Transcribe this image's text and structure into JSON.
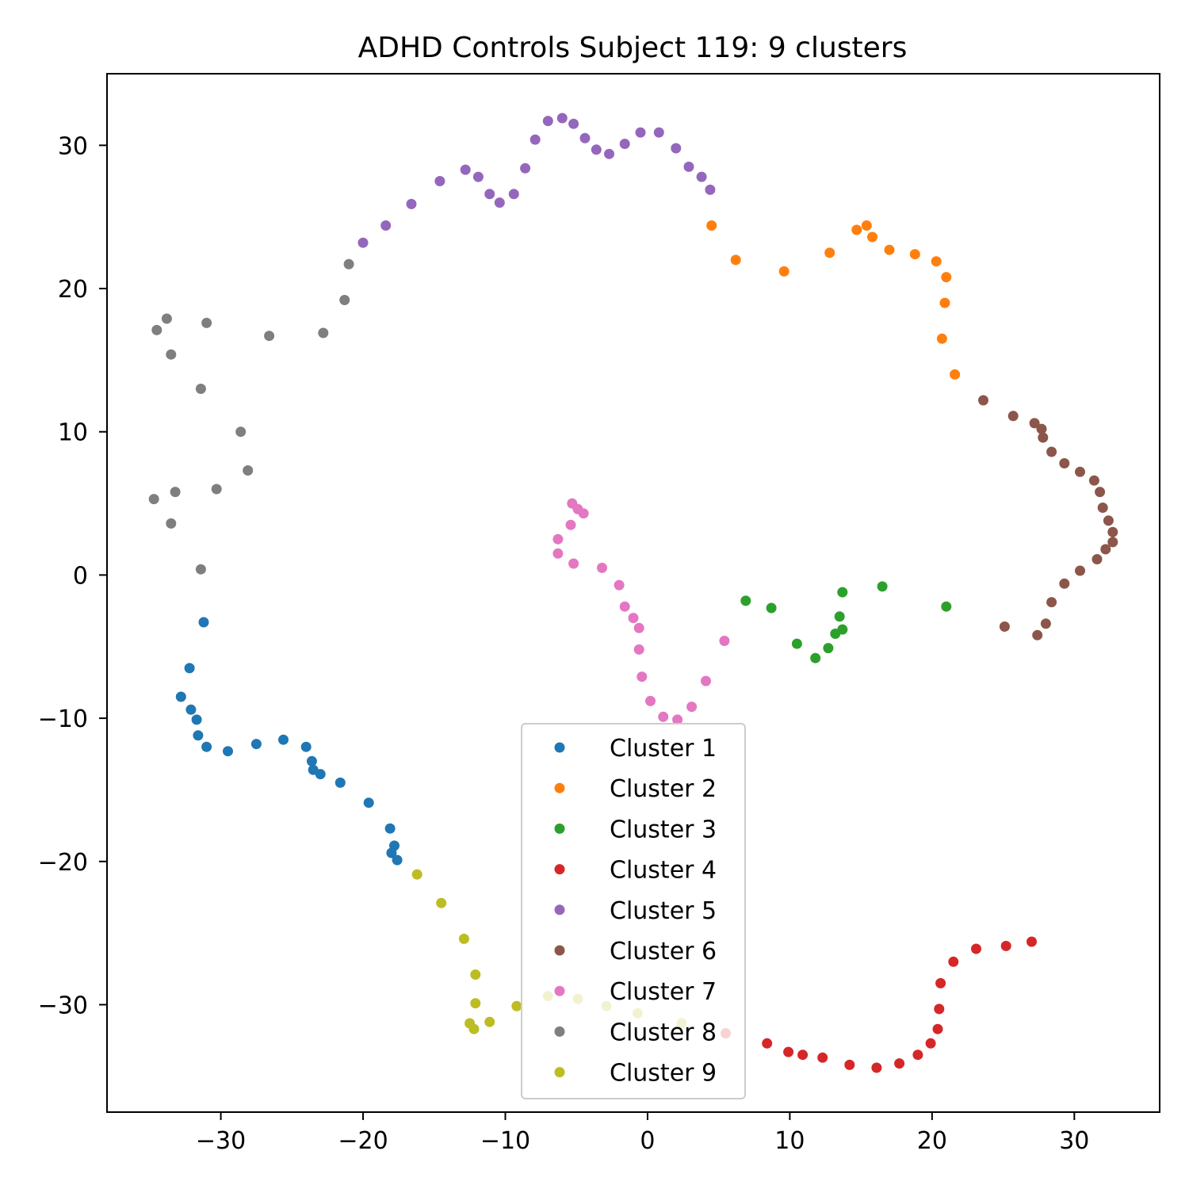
{
  "chart_data": {
    "type": "scatter",
    "title": "ADHD Controls Subject 119: 9 clusters",
    "xlabel": "",
    "ylabel": "",
    "xlim": [
      -38,
      36
    ],
    "ylim": [
      -37.5,
      35
    ],
    "xticks": [
      -30,
      -20,
      -10,
      0,
      10,
      20,
      30
    ],
    "yticks": [
      -30,
      -20,
      -10,
      0,
      10,
      20,
      30
    ],
    "xtick_labels": [
      "−30",
      "−20",
      "−10",
      "0",
      "10",
      "20",
      "30"
    ],
    "ytick_labels": [
      "−30",
      "−20",
      "−10",
      "0",
      "10",
      "20",
      "30"
    ],
    "grid": false,
    "legend_position": "lower center",
    "series": [
      {
        "name": "Cluster 1",
        "color": "#1f77b4",
        "points": [
          [
            -31.2,
            -3.3
          ],
          [
            -32.2,
            -6.5
          ],
          [
            -32.8,
            -8.5
          ],
          [
            -32.1,
            -9.4
          ],
          [
            -31.7,
            -10.1
          ],
          [
            -31.6,
            -11.2
          ],
          [
            -31.0,
            -12.0
          ],
          [
            -29.5,
            -12.3
          ],
          [
            -27.5,
            -11.8
          ],
          [
            -25.6,
            -11.5
          ],
          [
            -24.0,
            -12.0
          ],
          [
            -23.6,
            -13.0
          ],
          [
            -23.5,
            -13.6
          ],
          [
            -23.0,
            -13.9
          ],
          [
            -21.6,
            -14.5
          ],
          [
            -19.6,
            -15.9
          ],
          [
            -18.1,
            -17.7
          ],
          [
            -17.8,
            -18.9
          ],
          [
            -18.0,
            -19.4
          ],
          [
            -17.6,
            -19.9
          ]
        ]
      },
      {
        "name": "Cluster 2",
        "color": "#ff7f0e",
        "points": [
          [
            4.5,
            24.4
          ],
          [
            6.2,
            22.0
          ],
          [
            9.6,
            21.2
          ],
          [
            12.8,
            22.5
          ],
          [
            14.7,
            24.1
          ],
          [
            15.4,
            24.4
          ],
          [
            15.8,
            23.6
          ],
          [
            17.0,
            22.7
          ],
          [
            18.8,
            22.4
          ],
          [
            20.3,
            21.9
          ],
          [
            21.0,
            20.8
          ],
          [
            20.9,
            19.0
          ],
          [
            20.7,
            16.5
          ],
          [
            21.6,
            14.0
          ]
        ]
      },
      {
        "name": "Cluster 3",
        "color": "#2ca02c",
        "points": [
          [
            6.9,
            -1.8
          ],
          [
            8.7,
            -2.3
          ],
          [
            10.5,
            -4.8
          ],
          [
            11.8,
            -5.8
          ],
          [
            12.7,
            -5.1
          ],
          [
            13.2,
            -4.1
          ],
          [
            13.5,
            -2.9
          ],
          [
            13.7,
            -3.8
          ],
          [
            13.7,
            -1.2
          ],
          [
            16.5,
            -0.8
          ],
          [
            21.0,
            -2.2
          ]
        ]
      },
      {
        "name": "Cluster 4",
        "color": "#d62728",
        "points": [
          [
            5.5,
            -32.0
          ],
          [
            8.4,
            -32.7
          ],
          [
            9.9,
            -33.3
          ],
          [
            10.9,
            -33.5
          ],
          [
            12.3,
            -33.7
          ],
          [
            14.2,
            -34.2
          ],
          [
            16.1,
            -34.4
          ],
          [
            17.7,
            -34.1
          ],
          [
            19.0,
            -33.5
          ],
          [
            19.9,
            -32.7
          ],
          [
            20.4,
            -31.7
          ],
          [
            20.5,
            -30.3
          ],
          [
            20.6,
            -28.5
          ],
          [
            21.5,
            -27.0
          ],
          [
            23.1,
            -26.1
          ],
          [
            25.2,
            -25.9
          ],
          [
            27.0,
            -25.6
          ]
        ]
      },
      {
        "name": "Cluster 5",
        "color": "#9467bd",
        "points": [
          [
            -20.0,
            23.2
          ],
          [
            -18.4,
            24.4
          ],
          [
            -16.6,
            25.9
          ],
          [
            -14.6,
            27.5
          ],
          [
            -12.8,
            28.3
          ],
          [
            -11.9,
            27.8
          ],
          [
            -11.1,
            26.6
          ],
          [
            -10.4,
            26.0
          ],
          [
            -9.4,
            26.6
          ],
          [
            -8.6,
            28.4
          ],
          [
            -7.9,
            30.4
          ],
          [
            -7.0,
            31.7
          ],
          [
            -6.0,
            31.9
          ],
          [
            -5.2,
            31.5
          ],
          [
            -4.4,
            30.5
          ],
          [
            -3.6,
            29.7
          ],
          [
            -2.7,
            29.4
          ],
          [
            -1.6,
            30.1
          ],
          [
            -0.5,
            30.9
          ],
          [
            0.8,
            30.9
          ],
          [
            2.0,
            29.8
          ],
          [
            2.9,
            28.5
          ],
          [
            3.8,
            27.8
          ],
          [
            4.4,
            26.9
          ]
        ]
      },
      {
        "name": "Cluster 6",
        "color": "#8c564b",
        "points": [
          [
            23.6,
            12.2
          ],
          [
            25.7,
            11.1
          ],
          [
            27.2,
            10.6
          ],
          [
            27.7,
            10.2
          ],
          [
            27.8,
            9.6
          ],
          [
            28.4,
            8.6
          ],
          [
            29.3,
            7.8
          ],
          [
            30.4,
            7.2
          ],
          [
            31.4,
            6.6
          ],
          [
            31.8,
            5.8
          ],
          [
            32.0,
            4.7
          ],
          [
            32.4,
            3.8
          ],
          [
            32.7,
            3.0
          ],
          [
            32.7,
            2.3
          ],
          [
            32.2,
            1.8
          ],
          [
            31.6,
            1.1
          ],
          [
            30.4,
            0.3
          ],
          [
            29.3,
            -0.6
          ],
          [
            28.4,
            -1.9
          ],
          [
            28.0,
            -3.4
          ],
          [
            27.4,
            -4.2
          ],
          [
            25.1,
            -3.6
          ]
        ]
      },
      {
        "name": "Cluster 7",
        "color": "#e377c2",
        "points": [
          [
            -5.3,
            5.0
          ],
          [
            -4.9,
            4.6
          ],
          [
            -4.5,
            4.3
          ],
          [
            -5.4,
            3.5
          ],
          [
            -6.3,
            2.5
          ],
          [
            -6.3,
            1.5
          ],
          [
            -5.2,
            0.8
          ],
          [
            -3.2,
            0.5
          ],
          [
            -2.0,
            -0.7
          ],
          [
            -1.6,
            -2.2
          ],
          [
            -1.0,
            -3.0
          ],
          [
            -0.6,
            -3.7
          ],
          [
            -0.6,
            -5.2
          ],
          [
            -0.4,
            -7.1
          ],
          [
            0.2,
            -8.8
          ],
          [
            1.1,
            -9.9
          ],
          [
            2.1,
            -10.1
          ],
          [
            3.1,
            -9.2
          ],
          [
            4.1,
            -7.4
          ],
          [
            5.4,
            -4.6
          ]
        ]
      },
      {
        "name": "Cluster 8",
        "color": "#7f7f7f",
        "points": [
          [
            -34.5,
            17.1
          ],
          [
            -33.8,
            17.9
          ],
          [
            -33.5,
            15.4
          ],
          [
            -31.0,
            17.6
          ],
          [
            -31.4,
            13.0
          ],
          [
            -26.6,
            16.7
          ],
          [
            -22.8,
            16.9
          ],
          [
            -21.3,
            19.2
          ],
          [
            -21.0,
            21.7
          ],
          [
            -28.6,
            10.0
          ],
          [
            -28.1,
            7.3
          ],
          [
            -30.3,
            6.0
          ],
          [
            -33.2,
            5.8
          ],
          [
            -34.7,
            5.3
          ],
          [
            -33.5,
            3.6
          ],
          [
            -31.4,
            0.4
          ]
        ]
      },
      {
        "name": "Cluster 9",
        "color": "#bcbd22",
        "points": [
          [
            -16.2,
            -20.9
          ],
          [
            -14.5,
            -22.9
          ],
          [
            -12.9,
            -25.4
          ],
          [
            -12.1,
            -27.9
          ],
          [
            -12.1,
            -29.9
          ],
          [
            -12.5,
            -31.3
          ],
          [
            -12.2,
            -31.7
          ],
          [
            -11.1,
            -31.2
          ],
          [
            -9.2,
            -30.1
          ],
          [
            -7.0,
            -29.4
          ],
          [
            -4.9,
            -29.6
          ],
          [
            -2.9,
            -30.1
          ],
          [
            -0.7,
            -30.6
          ],
          [
            2.4,
            -31.3
          ]
        ]
      }
    ]
  }
}
